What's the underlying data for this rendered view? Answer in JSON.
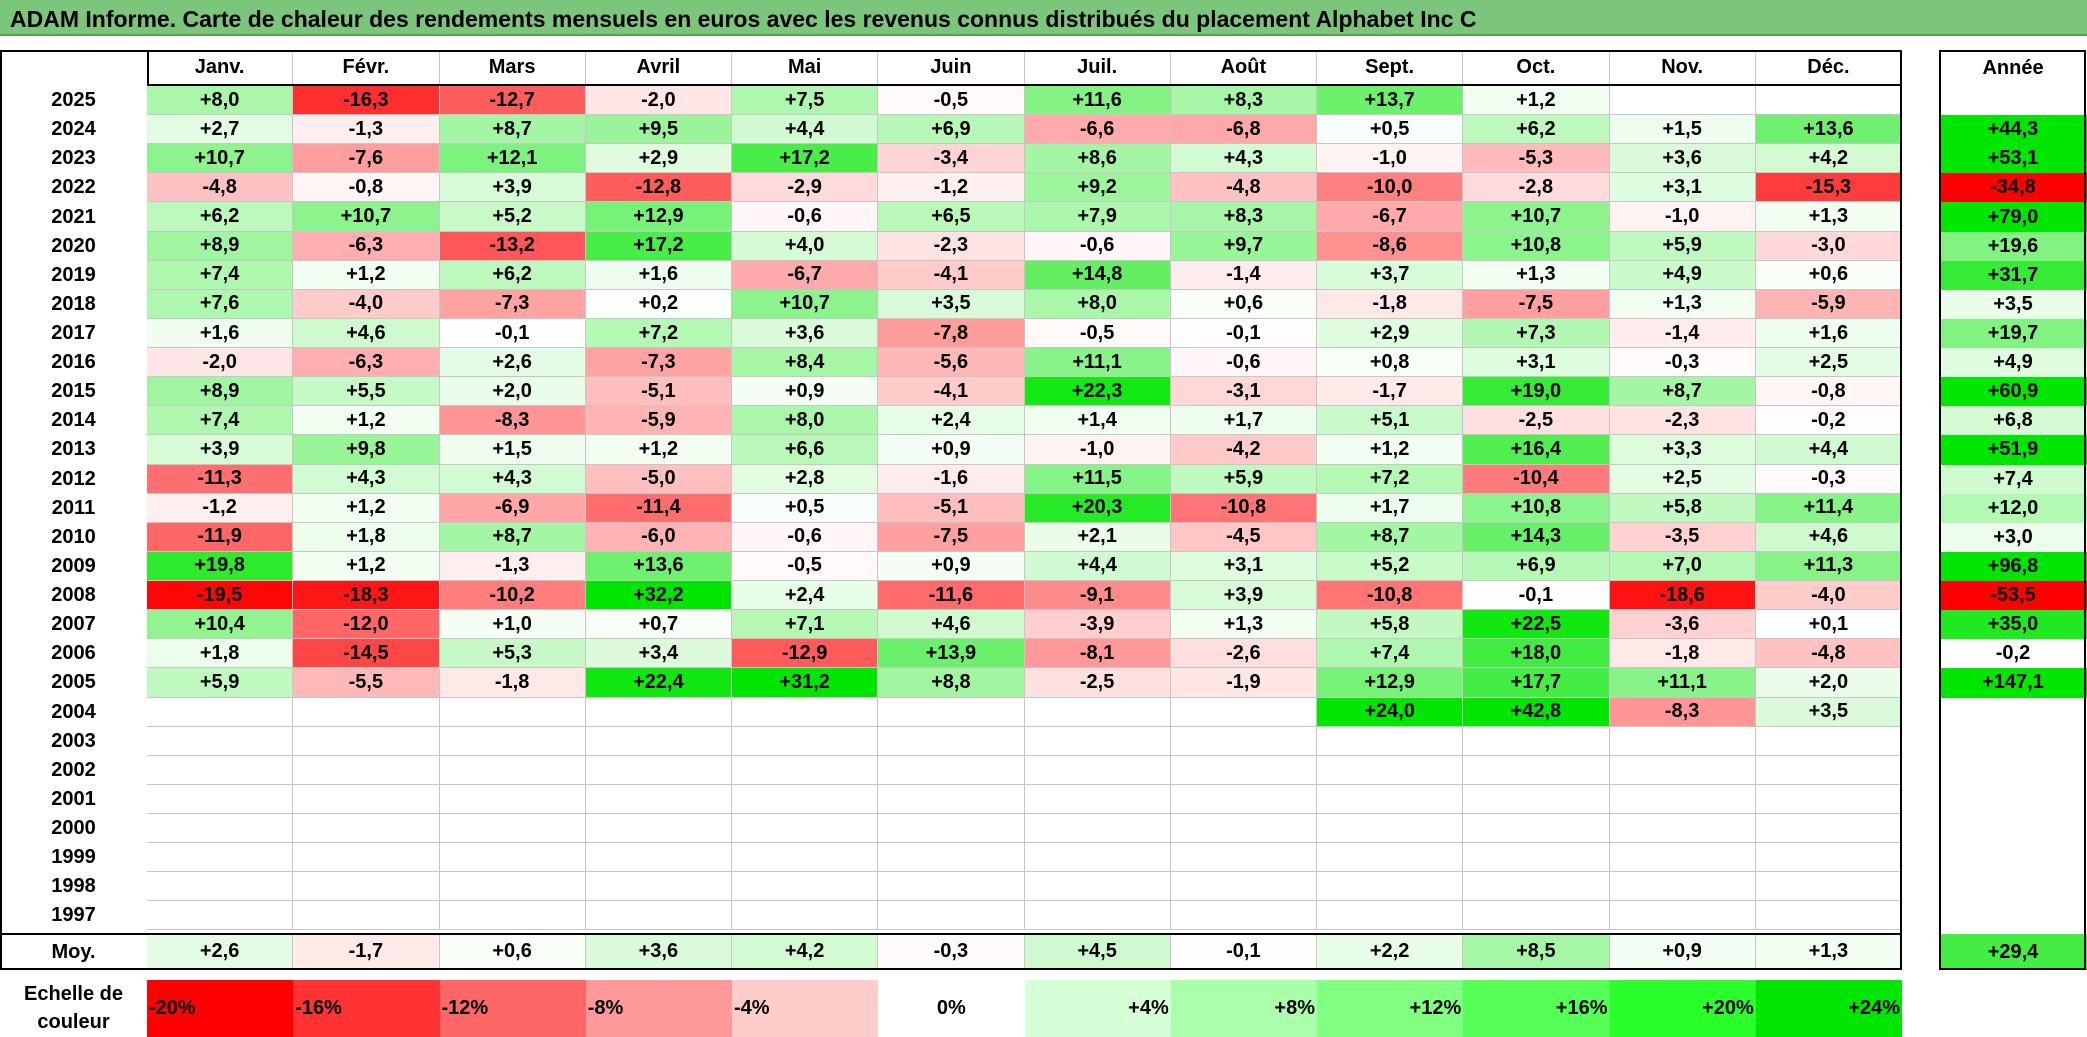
{
  "title": "ADAM Informe. Carte de chaleur des rendements mensuels en euros avec les revenus connus distribués du placement Alphabet Inc C",
  "months": [
    "Janv.",
    "Févr.",
    "Mars",
    "Avril",
    "Mai",
    "Juin",
    "Juil.",
    "Août",
    "Sept.",
    "Oct.",
    "Nov.",
    "Déc."
  ],
  "year_header": "Année",
  "avg_label": "Moy.",
  "scale_label_line1": "Echelle de",
  "scale_label_line2": "couleur",
  "chart_data": {
    "type": "heatmap",
    "title": "ADAM Informe. Carte de chaleur des rendements mensuels en euros avec les revenus connus distribués du placement Alphabet Inc C",
    "x": [
      "Janv.",
      "Févr.",
      "Mars",
      "Avril",
      "Mai",
      "Juin",
      "Juil.",
      "Août",
      "Sept.",
      "Oct.",
      "Nov.",
      "Déc."
    ],
    "rows": [
      {
        "year": "2025",
        "values": [
          "+8,0",
          "-16,3",
          "-12,7",
          "-2,0",
          "+7,5",
          "-0,5",
          "+11,6",
          "+8,3",
          "+13,7",
          "+1,2",
          "",
          ""
        ],
        "annual": ""
      },
      {
        "year": "2024",
        "values": [
          "+2,7",
          "-1,3",
          "+8,7",
          "+9,5",
          "+4,4",
          "+6,9",
          "-6,6",
          "-6,8",
          "+0,5",
          "+6,2",
          "+1,5",
          "+13,6"
        ],
        "annual": "+44,3"
      },
      {
        "year": "2023",
        "values": [
          "+10,7",
          "-7,6",
          "+12,1",
          "+2,9",
          "+17,2",
          "-3,4",
          "+8,6",
          "+4,3",
          "-1,0",
          "-5,3",
          "+3,6",
          "+4,2"
        ],
        "annual": "+53,1"
      },
      {
        "year": "2022",
        "values": [
          "-4,8",
          "-0,8",
          "+3,9",
          "-12,8",
          "-2,9",
          "-1,2",
          "+9,2",
          "-4,8",
          "-10,0",
          "-2,8",
          "+3,1",
          "-15,3"
        ],
        "annual": "-34,8"
      },
      {
        "year": "2021",
        "values": [
          "+6,2",
          "+10,7",
          "+5,2",
          "+12,9",
          "-0,6",
          "+6,5",
          "+7,9",
          "+8,3",
          "-6,7",
          "+10,7",
          "-1,0",
          "+1,3"
        ],
        "annual": "+79,0"
      },
      {
        "year": "2020",
        "values": [
          "+8,9",
          "-6,3",
          "-13,2",
          "+17,2",
          "+4,0",
          "-2,3",
          "-0,6",
          "+9,7",
          "-8,6",
          "+10,8",
          "+5,9",
          "-3,0"
        ],
        "annual": "+19,6"
      },
      {
        "year": "2019",
        "values": [
          "+7,4",
          "+1,2",
          "+6,2",
          "+1,6",
          "-6,7",
          "-4,1",
          "+14,8",
          "-1,4",
          "+3,7",
          "+1,3",
          "+4,9",
          "+0,6"
        ],
        "annual": "+31,7"
      },
      {
        "year": "2018",
        "values": [
          "+7,6",
          "-4,0",
          "-7,3",
          "+0,2",
          "+10,7",
          "+3,5",
          "+8,0",
          "+0,6",
          "-1,8",
          "-7,5",
          "+1,3",
          "-5,9"
        ],
        "annual": "+3,5"
      },
      {
        "year": "2017",
        "values": [
          "+1,6",
          "+4,6",
          "-0,1",
          "+7,2",
          "+3,6",
          "-7,8",
          "-0,5",
          "-0,1",
          "+2,9",
          "+7,3",
          "-1,4",
          "+1,6"
        ],
        "annual": "+19,7"
      },
      {
        "year": "2016",
        "values": [
          "-2,0",
          "-6,3",
          "+2,6",
          "-7,3",
          "+8,4",
          "-5,6",
          "+11,1",
          "-0,6",
          "+0,8",
          "+3,1",
          "-0,3",
          "+2,5"
        ],
        "annual": "+4,9"
      },
      {
        "year": "2015",
        "values": [
          "+8,9",
          "+5,5",
          "+2,0",
          "-5,1",
          "+0,9",
          "-4,1",
          "+22,3",
          "-3,1",
          "-1,7",
          "+19,0",
          "+8,7",
          "-0,8"
        ],
        "annual": "+60,9"
      },
      {
        "year": "2014",
        "values": [
          "+7,4",
          "+1,2",
          "-8,3",
          "-5,9",
          "+8,0",
          "+2,4",
          "+1,4",
          "+1,7",
          "+5,1",
          "-2,5",
          "-2,3",
          "-0,2"
        ],
        "annual": "+6,8"
      },
      {
        "year": "2013",
        "values": [
          "+3,9",
          "+9,8",
          "+1,5",
          "+1,2",
          "+6,6",
          "+0,9",
          "-1,0",
          "-4,2",
          "+1,2",
          "+16,4",
          "+3,3",
          "+4,4"
        ],
        "annual": "+51,9"
      },
      {
        "year": "2012",
        "values": [
          "-11,3",
          "+4,3",
          "+4,3",
          "-5,0",
          "+2,8",
          "-1,6",
          "+11,5",
          "+5,9",
          "+7,2",
          "-10,4",
          "+2,5",
          "-0,3"
        ],
        "annual": "+7,4"
      },
      {
        "year": "2011",
        "values": [
          "-1,2",
          "+1,2",
          "-6,9",
          "-11,4",
          "+0,5",
          "-5,1",
          "+20,3",
          "-10,8",
          "+1,7",
          "+10,8",
          "+5,8",
          "+11,4"
        ],
        "annual": "+12,0"
      },
      {
        "year": "2010",
        "values": [
          "-11,9",
          "+1,8",
          "+8,7",
          "-6,0",
          "-0,6",
          "-7,5",
          "+2,1",
          "-4,5",
          "+8,7",
          "+14,3",
          "-3,5",
          "+4,6"
        ],
        "annual": "+3,0"
      },
      {
        "year": "2009",
        "values": [
          "+19,8",
          "+1,2",
          "-1,3",
          "+13,6",
          "-0,5",
          "+0,9",
          "+4,4",
          "+3,1",
          "+5,2",
          "+6,9",
          "+7,0",
          "+11,3"
        ],
        "annual": "+96,8"
      },
      {
        "year": "2008",
        "values": [
          "-19,5",
          "-18,3",
          "-10,2",
          "+32,2",
          "+2,4",
          "-11,6",
          "-9,1",
          "+3,9",
          "-10,8",
          "-0,1",
          "-18,6",
          "-4,0"
        ],
        "annual": "-53,5"
      },
      {
        "year": "2007",
        "values": [
          "+10,4",
          "-12,0",
          "+1,0",
          "+0,7",
          "+7,1",
          "+4,6",
          "-3,9",
          "+1,3",
          "+5,8",
          "+22,5",
          "-3,6",
          "+0,1"
        ],
        "annual": "+35,0"
      },
      {
        "year": "2006",
        "values": [
          "+1,8",
          "-14,5",
          "+5,3",
          "+3,4",
          "-12,9",
          "+13,9",
          "-8,1",
          "-2,6",
          "+7,4",
          "+18,0",
          "-1,8",
          "-4,8"
        ],
        "annual": "-0,2"
      },
      {
        "year": "2005",
        "values": [
          "+5,9",
          "-5,5",
          "-1,8",
          "+22,4",
          "+31,2",
          "+8,8",
          "-2,5",
          "-1,9",
          "+12,9",
          "+17,7",
          "+11,1",
          "+2,0"
        ],
        "annual": "+147,1"
      },
      {
        "year": "2004",
        "values": [
          "",
          "",
          "",
          "",
          "",
          "",
          "",
          "",
          "+24,0",
          "+42,8",
          "-8,3",
          "+3,5"
        ],
        "annual": ""
      },
      {
        "year": "2003",
        "values": [
          "",
          "",
          "",
          "",
          "",
          "",
          "",
          "",
          "",
          "",
          "",
          ""
        ],
        "annual": ""
      },
      {
        "year": "2002",
        "values": [
          "",
          "",
          "",
          "",
          "",
          "",
          "",
          "",
          "",
          "",
          "",
          ""
        ],
        "annual": ""
      },
      {
        "year": "2001",
        "values": [
          "",
          "",
          "",
          "",
          "",
          "",
          "",
          "",
          "",
          "",
          "",
          ""
        ],
        "annual": ""
      },
      {
        "year": "2000",
        "values": [
          "",
          "",
          "",
          "",
          "",
          "",
          "",
          "",
          "",
          "",
          "",
          ""
        ],
        "annual": ""
      },
      {
        "year": "1999",
        "values": [
          "",
          "",
          "",
          "",
          "",
          "",
          "",
          "",
          "",
          "",
          "",
          ""
        ],
        "annual": ""
      },
      {
        "year": "1998",
        "values": [
          "",
          "",
          "",
          "",
          "",
          "",
          "",
          "",
          "",
          "",
          "",
          ""
        ],
        "annual": ""
      },
      {
        "year": "1997",
        "values": [
          "",
          "",
          "",
          "",
          "",
          "",
          "",
          "",
          "",
          "",
          "",
          ""
        ],
        "annual": ""
      }
    ],
    "averages": [
      "+2,6",
      "-1,7",
      "+0,6",
      "+3,6",
      "+4,2",
      "-0,3",
      "+4,5",
      "-0,1",
      "+2,2",
      "+8,5",
      "+0,9",
      "+1,3"
    ],
    "average_annual": "+29,4",
    "color_scale": [
      {
        "label": "-20%",
        "value": -20,
        "color": "#ff0000"
      },
      {
        "label": "-16%",
        "value": -16,
        "color": "#ff3333"
      },
      {
        "label": "-12%",
        "value": -12,
        "color": "#ff6666"
      },
      {
        "label": "-8%",
        "value": -8,
        "color": "#ff9999"
      },
      {
        "label": "-4%",
        "value": -4,
        "color": "#ffcccc"
      },
      {
        "label": "0%",
        "value": 0,
        "color": "#ffffff"
      },
      {
        "label": "+4%",
        "value": 4,
        "color": "#d5ffd5"
      },
      {
        "label": "+8%",
        "value": 8,
        "color": "#aaffaa"
      },
      {
        "label": "+12%",
        "value": 12,
        "color": "#80ff80"
      },
      {
        "label": "+16%",
        "value": 16,
        "color": "#55ff55"
      },
      {
        "label": "+20%",
        "value": 20,
        "color": "#2aff2a"
      },
      {
        "label": "+24%",
        "value": 24,
        "color": "#00e600"
      }
    ]
  }
}
